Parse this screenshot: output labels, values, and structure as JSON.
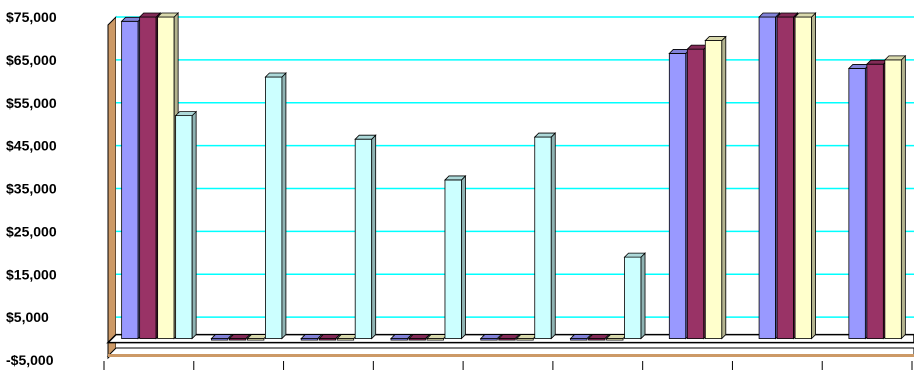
{
  "chart_data": {
    "type": "bar",
    "style": "3d-clustered-column",
    "categories": [
      "",
      "",
      "",
      "",
      "",
      "",
      "",
      "",
      ""
    ],
    "series": [
      {
        "values": [
          74000,
          0,
          0,
          0,
          0,
          0,
          66500,
          75000,
          63000
        ],
        "color": "#9999FF"
      },
      {
        "values": [
          75000,
          0,
          0,
          0,
          0,
          0,
          67500,
          75000,
          64000
        ],
        "color": "#993366"
      },
      {
        "values": [
          75000,
          0,
          0,
          0,
          0,
          0,
          69500,
          75000,
          65000
        ],
        "color": "#FFFFCC"
      },
      {
        "values": [
          52000,
          61000,
          46500,
          37000,
          47000,
          19000,
          null,
          null,
          null
        ],
        "color": "#CCFFFF"
      }
    ],
    "ylim": [
      -5000,
      75000
    ],
    "yticks": [
      "$75,000",
      "$65,000",
      "$55,000",
      "$45,000",
      "$35,000",
      "$25,000",
      "$15,000",
      "$5,000",
      "-$5,000"
    ],
    "ytick_values": [
      75000,
      65000,
      55000,
      45000,
      35000,
      25000,
      15000,
      5000,
      -5000
    ],
    "grid": true,
    "gridline_color": "#00FFFF",
    "wall_color": "#CC9966",
    "title": "",
    "xlabel": "",
    "ylabel": ""
  }
}
